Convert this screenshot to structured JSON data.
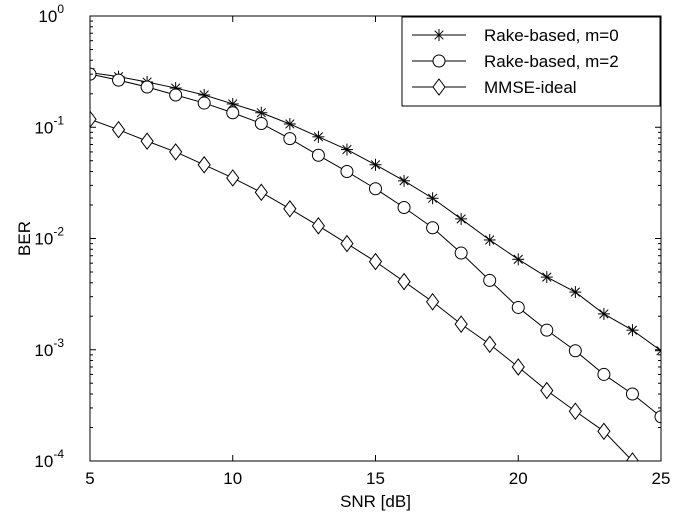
{
  "chart_data": {
    "type": "line",
    "xlabel": "SNR [dB]",
    "ylabel": "BER",
    "xlim": [
      5,
      25
    ],
    "ylim": [
      0.0001,
      1
    ],
    "yscale": "log",
    "grid": false,
    "legend_position": "top-right",
    "x_ticks": [
      5,
      10,
      15,
      20,
      25
    ],
    "y_ticks": [
      {
        "value": 0.0001,
        "base": "10",
        "exp": "-4"
      },
      {
        "value": 0.001,
        "base": "10",
        "exp": "-3"
      },
      {
        "value": 0.01,
        "base": "10",
        "exp": "-2"
      },
      {
        "value": 0.1,
        "base": "10",
        "exp": "-1"
      },
      {
        "value": 1,
        "base": "10",
        "exp": "0"
      }
    ],
    "x": [
      5,
      6,
      7,
      8,
      9,
      10,
      11,
      12,
      13,
      14,
      15,
      16,
      17,
      18,
      19,
      20,
      21,
      22,
      23,
      24,
      25
    ],
    "series": [
      {
        "name": "Rake-based, m=0",
        "marker": "asterisk",
        "values": [
          0.31,
          0.285,
          0.255,
          0.225,
          0.195,
          0.162,
          0.135,
          0.107,
          0.082,
          0.063,
          0.046,
          0.033,
          0.023,
          0.015,
          0.0097,
          0.0065,
          0.0045,
          0.0033,
          0.0021,
          0.0015,
          0.00098
        ]
      },
      {
        "name": "Rake-based, m=2",
        "marker": "circle",
        "values": [
          0.3,
          0.265,
          0.23,
          0.195,
          0.165,
          0.135,
          0.108,
          0.079,
          0.056,
          0.04,
          0.028,
          0.019,
          0.0125,
          0.0074,
          0.0042,
          0.0024,
          0.0015,
          0.00098,
          0.0006,
          0.0004,
          0.00025
        ]
      },
      {
        "name": "MMSE-ideal",
        "marker": "diamond",
        "values": [
          0.118,
          0.095,
          0.075,
          0.06,
          0.046,
          0.035,
          0.026,
          0.0185,
          0.013,
          0.009,
          0.0062,
          0.0041,
          0.0027,
          0.0017,
          0.00112,
          0.0007,
          0.00043,
          0.00028,
          0.000185,
          0.0001,
          6e-05
        ]
      }
    ]
  }
}
